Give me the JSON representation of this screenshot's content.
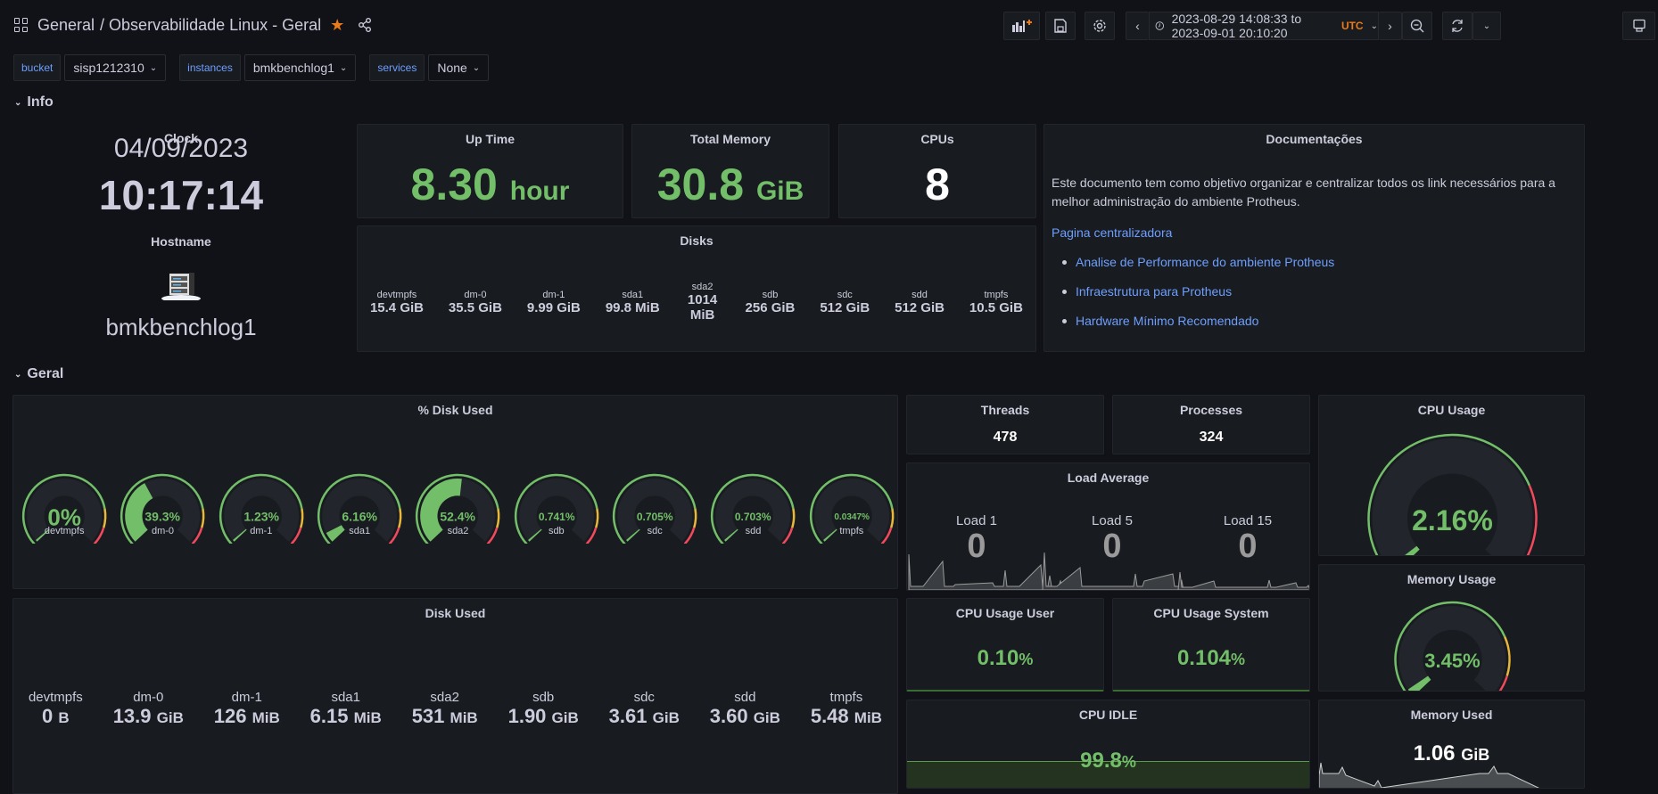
{
  "header": {
    "folder": "General",
    "title": "/ Observabilidade Linux - Geral",
    "starred": true,
    "time_range": "2023-08-29 14:08:33 to 2023-09-01 20:10:20",
    "timezone": "UTC",
    "icons": [
      "dashboard-grid-icon",
      "star-icon",
      "share-icon",
      "add-panel-icon",
      "save-icon",
      "settings-icon",
      "time-back-icon",
      "clock-icon",
      "time-forward-icon",
      "zoom-out-icon",
      "refresh-icon",
      "refresh-dropdown-icon",
      "tv-mode-icon"
    ]
  },
  "variables": [
    {
      "label": "bucket",
      "value": "sisp1212310"
    },
    {
      "label": "instances",
      "value": "bmkbenchlog1"
    },
    {
      "label": "services",
      "value": "None"
    }
  ],
  "rows": {
    "info": "Info",
    "geral": "Geral"
  },
  "info": {
    "clock": {
      "title": "Clock",
      "date": "04/09/2023",
      "time": "10:17:14"
    },
    "hostname": {
      "title": "Hostname",
      "value": "bmkbenchlog1"
    },
    "uptime": {
      "title": "Up Time",
      "value": "8.30",
      "unit": "hour"
    },
    "total_memory": {
      "title": "Total Memory",
      "value": "30.8",
      "unit": "GiB"
    },
    "cpus": {
      "title": "CPUs",
      "value": "8"
    },
    "disks": {
      "title": "Disks",
      "items": [
        {
          "name": "devtmpfs",
          "value": "15.4 GiB"
        },
        {
          "name": "dm-0",
          "value": "35.5 GiB"
        },
        {
          "name": "dm-1",
          "value": "9.99 GiB"
        },
        {
          "name": "sda1",
          "value": "99.8 MiB"
        },
        {
          "name": "sda2",
          "value": "1014 MiB"
        },
        {
          "name": "sdb",
          "value": "256 GiB"
        },
        {
          "name": "sdc",
          "value": "512 GiB"
        },
        {
          "name": "sdd",
          "value": "512 GiB"
        },
        {
          "name": "tmpfs",
          "value": "10.5 GiB"
        }
      ]
    },
    "docs": {
      "title": "Documentações",
      "text": "Este documento tem como objetivo organizar e centralizar todos os link necessários para a melhor administração do ambiente Protheus.",
      "main_link": "Pagina centralizadora",
      "links": [
        "Analise de Performance do ambiente Protheus",
        "Infraestrutura para Protheus",
        "Hardware Mínimo Recomendado"
      ]
    }
  },
  "geral": {
    "disk_pct": {
      "title": "% Disk Used",
      "items": [
        {
          "name": "devtmpfs",
          "label": "0%",
          "pct": 0
        },
        {
          "name": "dm-0",
          "label": "39.3%",
          "pct": 39.3
        },
        {
          "name": "dm-1",
          "label": "1.23%",
          "pct": 1.23
        },
        {
          "name": "sda1",
          "label": "6.16%",
          "pct": 6.16
        },
        {
          "name": "sda2",
          "label": "52.4%",
          "pct": 52.4
        },
        {
          "name": "sdb",
          "label": "0.741%",
          "pct": 0.741
        },
        {
          "name": "sdc",
          "label": "0.705%",
          "pct": 0.705
        },
        {
          "name": "sdd",
          "label": "0.703%",
          "pct": 0.703
        },
        {
          "name": "tmpfs",
          "label": "0.0347%",
          "pct": 0.0347
        }
      ]
    },
    "disk_used": {
      "title": "Disk Used",
      "items": [
        {
          "name": "devtmpfs",
          "value": "0",
          "unit": "B"
        },
        {
          "name": "dm-0",
          "value": "13.9",
          "unit": "GiB"
        },
        {
          "name": "dm-1",
          "value": "126",
          "unit": "MiB"
        },
        {
          "name": "sda1",
          "value": "6.15",
          "unit": "MiB"
        },
        {
          "name": "sda2",
          "value": "531",
          "unit": "MiB"
        },
        {
          "name": "sdb",
          "value": "1.90",
          "unit": "GiB"
        },
        {
          "name": "sdc",
          "value": "3.61",
          "unit": "GiB"
        },
        {
          "name": "sdd",
          "value": "3.60",
          "unit": "GiB"
        },
        {
          "name": "tmpfs",
          "value": "5.48",
          "unit": "MiB"
        }
      ]
    },
    "threads": {
      "title": "Threads",
      "value": "478"
    },
    "processes": {
      "title": "Processes",
      "value": "324"
    },
    "load": {
      "title": "Load Average",
      "items": [
        {
          "name": "Load 1",
          "value": "0"
        },
        {
          "name": "Load 5",
          "value": "0"
        },
        {
          "name": "Load 15",
          "value": "0"
        }
      ]
    },
    "cpu_user": {
      "title": "CPU Usage User",
      "value": "0.10",
      "unit": "%"
    },
    "cpu_system": {
      "title": "CPU Usage System",
      "value": "0.104",
      "unit": "%"
    },
    "cpu_idle": {
      "title": "CPU IDLE",
      "value": "99.8",
      "unit": "%"
    },
    "cpu_usage": {
      "title": "CPU Usage",
      "label": "2.16%",
      "pct": 2.16
    },
    "mem_usage": {
      "title": "Memory Usage",
      "label": "3.45%",
      "pct": 3.45
    },
    "mem_used": {
      "title": "Memory Used",
      "value": "1.06",
      "unit": "GiB"
    }
  },
  "colors": {
    "green": "#73bf69",
    "orange": "#eb7b18",
    "yellow": "#eab839",
    "red": "#f2495c",
    "link": "#6e9fff"
  }
}
